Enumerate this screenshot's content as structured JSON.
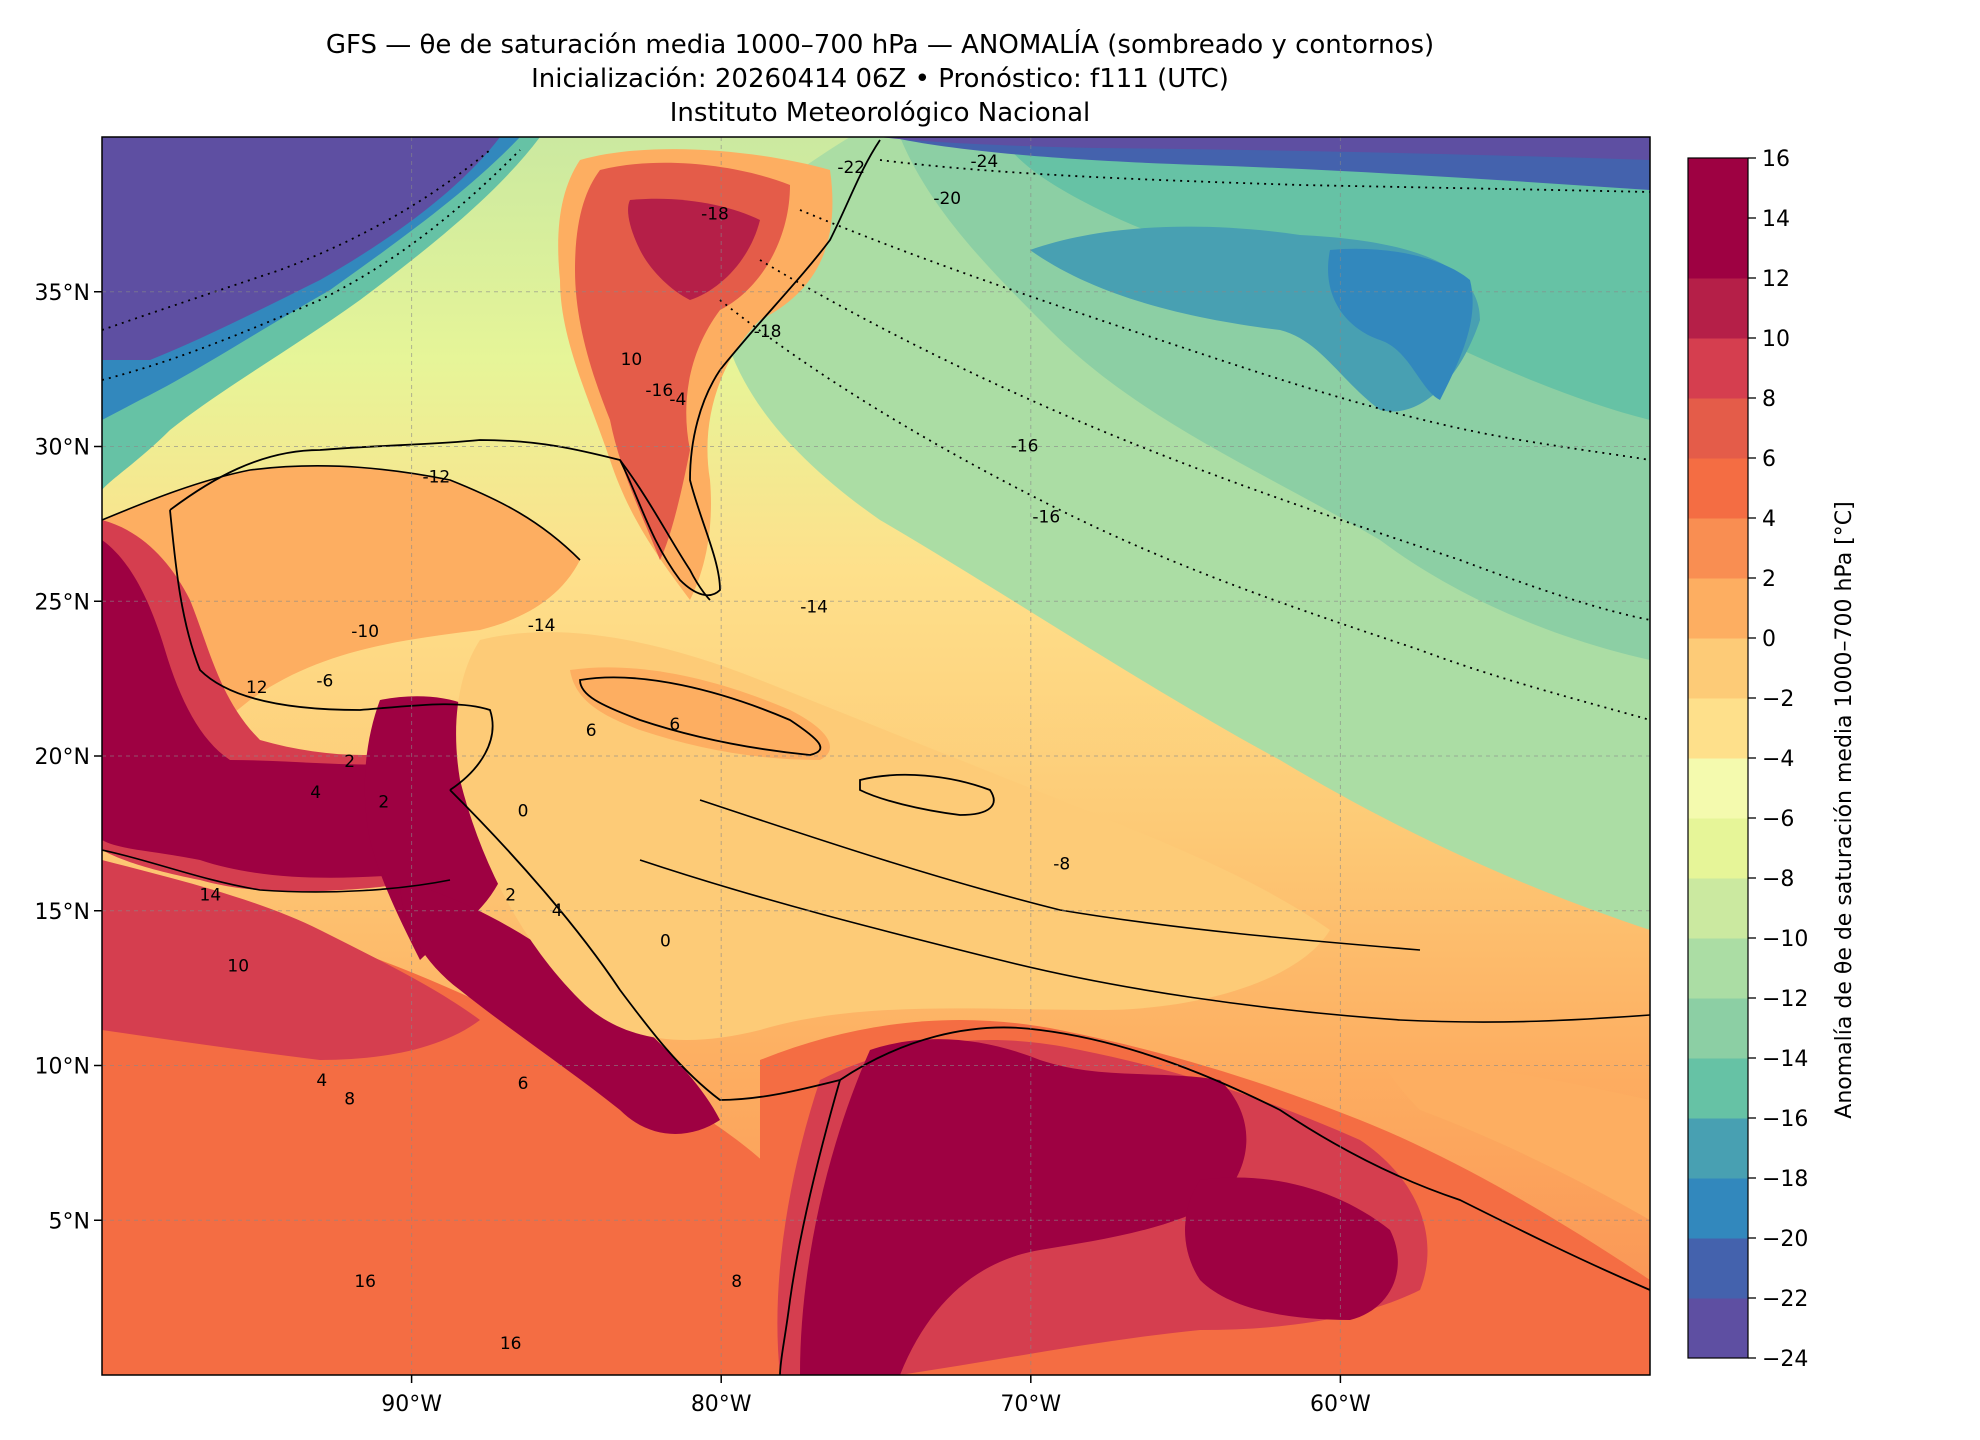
{
  "title": {
    "line1": "GFS — θe de saturación media 1000–700 hPa — ANOMALÍA (sombreado y contornos)",
    "line2": "Inicialización: 20260414 06Z   •   Pronóstico: f111 (UTC)",
    "line3": "Instituto Meteorológico Nacional"
  },
  "map": {
    "lon_range": [
      -100,
      -50
    ],
    "lat_range": [
      0,
      40
    ],
    "x_ticks": [
      {
        "value": -90,
        "label": "90°W"
      },
      {
        "value": -80,
        "label": "80°W"
      },
      {
        "value": -70,
        "label": "70°W"
      },
      {
        "value": -60,
        "label": "60°W"
      }
    ],
    "y_ticks": [
      {
        "value": 35,
        "label": "35°N"
      },
      {
        "value": 30,
        "label": "30°N"
      },
      {
        "value": 25,
        "label": "25°N"
      },
      {
        "value": 20,
        "label": "20°N"
      },
      {
        "value": 15,
        "label": "15°N"
      },
      {
        "value": 10,
        "label": "10°N"
      },
      {
        "value": 5,
        "label": "5°N"
      }
    ],
    "grid": true,
    "contour_labels": [
      {
        "value": "-24",
        "lon": -71.5,
        "lat": 39.2
      },
      {
        "value": "-22",
        "lon": -75.8,
        "lat": 39.0
      },
      {
        "value": "-20",
        "lon": -72.7,
        "lat": 38.0
      },
      {
        "value": "-18",
        "lon": -80.2,
        "lat": 37.5
      },
      {
        "value": "-18",
        "lon": -78.5,
        "lat": 33.7
      },
      {
        "value": "-16",
        "lon": -82.0,
        "lat": 31.8
      },
      {
        "value": "-16",
        "lon": -70.2,
        "lat": 30.0
      },
      {
        "value": "-16",
        "lon": -69.5,
        "lat": 27.7
      },
      {
        "value": "-14",
        "lon": -85.8,
        "lat": 24.2
      },
      {
        "value": "-14",
        "lon": -77.0,
        "lat": 24.8
      },
      {
        "value": "-12",
        "lon": -89.2,
        "lat": 29.0
      },
      {
        "value": "-10",
        "lon": -91.5,
        "lat": 24.0
      },
      {
        "value": "-8",
        "lon": -69.0,
        "lat": 16.5
      },
      {
        "value": "-6",
        "lon": -92.8,
        "lat": 22.4
      },
      {
        "value": "-4",
        "lon": -81.4,
        "lat": 31.5
      },
      {
        "value": "0",
        "lon": -86.4,
        "lat": 18.2
      },
      {
        "value": "0",
        "lon": -81.8,
        "lat": 14.0
      },
      {
        "value": "2",
        "lon": -86.8,
        "lat": 15.5
      },
      {
        "value": "2",
        "lon": -92.0,
        "lat": 19.8
      },
      {
        "value": "2",
        "lon": -90.9,
        "lat": 18.5
      },
      {
        "value": "4",
        "lon": -85.3,
        "lat": 15.0
      },
      {
        "value": "4",
        "lon": -93.1,
        "lat": 18.8
      },
      {
        "value": "4",
        "lon": -92.9,
        "lat": 9.5
      },
      {
        "value": "6",
        "lon": -81.5,
        "lat": 21.0
      },
      {
        "value": "6",
        "lon": -84.2,
        "lat": 20.8
      },
      {
        "value": "6",
        "lon": -86.4,
        "lat": 9.4
      },
      {
        "value": "8",
        "lon": -92.0,
        "lat": 8.9
      },
      {
        "value": "8",
        "lon": -79.5,
        "lat": 3.0
      },
      {
        "value": "10",
        "lon": -95.6,
        "lat": 13.2
      },
      {
        "value": "10",
        "lon": -82.9,
        "lat": 32.8
      },
      {
        "value": "12",
        "lon": -95.0,
        "lat": 22.2
      },
      {
        "value": "14",
        "lon": -96.5,
        "lat": 15.5
      },
      {
        "value": "16",
        "lon": -91.5,
        "lat": 3.0
      },
      {
        "value": "16",
        "lon": -86.8,
        "lat": 1.0
      }
    ]
  },
  "colorbar": {
    "label": "Anomalía de θe de saturación media 1000–700 hPa [°C]",
    "min": -24,
    "max": 16,
    "ticks": [
      "16",
      "14",
      "12",
      "10",
      "8",
      "6",
      "4",
      "2",
      "0",
      "−2",
      "−4",
      "−6",
      "−8",
      "−10",
      "−12",
      "−14",
      "−16",
      "−18",
      "−20",
      "−22",
      "−24"
    ],
    "colors": [
      "#5e4fa2",
      "#4462ad",
      "#3288bd",
      "#48a0b2",
      "#66c2a5",
      "#8ccfa4",
      "#abdda4",
      "#cbe9a0",
      "#e6f598",
      "#f4faae",
      "#fee08b",
      "#fdcb77",
      "#fdae61",
      "#f98e52",
      "#f46d43",
      "#e45c49",
      "#d53e4f",
      "#b51f48",
      "#9e0142",
      "#9e0142"
    ]
  }
}
